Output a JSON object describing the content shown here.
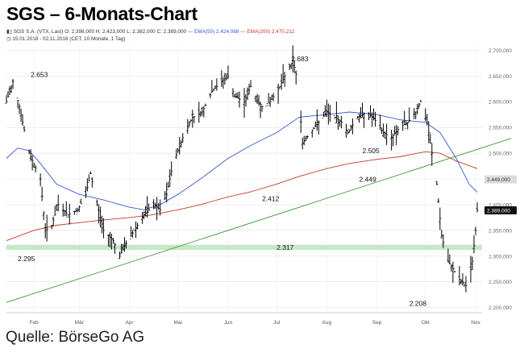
{
  "header": {
    "title": "SGS – 6-Monats-Chart",
    "info_instrument": "SGS S.A. (VTX, Last)",
    "info_ohlc": "O: 2.398,000 H: 2.423,000 L: 2.382,000 C: 2.389,000",
    "info_ema50": "EMA(50) 2.424,088",
    "info_ema200": "EMA(200) 2.470,212",
    "info_range": "15.01.2018 - 02.11.2018 (CET, 10 Monate, 1 Tag)"
  },
  "footer": {
    "source": "Quelle: BörseGo AG"
  },
  "colors": {
    "ema50": "#3a55d4",
    "ema200": "#c43a2e",
    "trendline": "#3a9a3a",
    "support_band": "#bfe5bf",
    "candles": "#000000"
  },
  "chart_data": {
    "type": "line",
    "subtype": "daily-range-bars",
    "ylim": [
      2190,
      2710
    ],
    "y_ticks": [
      "2.200,000",
      "2.250,000",
      "2.300,000",
      "2.350,000",
      "2.400,000",
      "2.450,000",
      "2.500,000",
      "2.550,000",
      "2.600,000",
      "2.650,000",
      "2.700,000"
    ],
    "y_tick_values": [
      2200,
      2250,
      2300,
      2350,
      2400,
      2450,
      2500,
      2550,
      2600,
      2650,
      2700
    ],
    "x_ticks": [
      "Feb",
      "Mär",
      "Apr",
      "Mai",
      "Jun",
      "Jul",
      "Aug",
      "Sep",
      "Okt",
      "Nov"
    ],
    "x_tick_dates": [
      "2018-02-01",
      "2018-03-01",
      "2018-04-01",
      "2018-05-01",
      "2018-06-01",
      "2018-07-01",
      "2018-08-01",
      "2018-09-01",
      "2018-10-01",
      "2018-11-01"
    ],
    "x_range": [
      "2018-01-15",
      "2018-11-05"
    ],
    "price_path": [
      [
        "2018-01-15",
        2600
      ],
      [
        "2018-01-19",
        2640
      ],
      [
        "2018-01-23",
        2590
      ],
      [
        "2018-01-29",
        2500
      ],
      [
        "2018-02-05",
        2450
      ],
      [
        "2018-02-08",
        2350
      ],
      [
        "2018-02-12",
        2360
      ],
      [
        "2018-02-16",
        2400
      ],
      [
        "2018-02-22",
        2380
      ],
      [
        "2018-02-28",
        2390
      ],
      [
        "2018-03-05",
        2420
      ],
      [
        "2018-03-08",
        2460
      ],
      [
        "2018-03-12",
        2400
      ],
      [
        "2018-03-16",
        2350
      ],
      [
        "2018-03-22",
        2330
      ],
      [
        "2018-03-26",
        2300
      ],
      [
        "2018-03-29",
        2320
      ],
      [
        "2018-04-04",
        2350
      ],
      [
        "2018-04-10",
        2380
      ],
      [
        "2018-04-16",
        2400
      ],
      [
        "2018-04-20",
        2390
      ],
      [
        "2018-04-24",
        2420
      ],
      [
        "2018-04-28",
        2480
      ],
      [
        "2018-05-04",
        2530
      ],
      [
        "2018-05-10",
        2570
      ],
      [
        "2018-05-16",
        2580
      ],
      [
        "2018-05-22",
        2620
      ],
      [
        "2018-05-28",
        2640
      ],
      [
        "2018-06-01",
        2650
      ],
      [
        "2018-06-05",
        2610
      ],
      [
        "2018-06-11",
        2600
      ],
      [
        "2018-06-15",
        2630
      ],
      [
        "2018-06-21",
        2590
      ],
      [
        "2018-06-27",
        2600
      ],
      [
        "2018-07-03",
        2630
      ],
      [
        "2018-07-06",
        2650
      ],
      [
        "2018-07-11",
        2680
      ],
      [
        "2018-07-14",
        2640
      ],
      [
        "2018-07-17",
        2520
      ],
      [
        "2018-07-22",
        2540
      ],
      [
        "2018-07-27",
        2560
      ],
      [
        "2018-08-01",
        2580
      ],
      [
        "2018-08-06",
        2570
      ],
      [
        "2018-08-10",
        2560
      ],
      [
        "2018-08-14",
        2540
      ],
      [
        "2018-08-20",
        2570
      ],
      [
        "2018-08-26",
        2580
      ],
      [
        "2018-09-01",
        2560
      ],
      [
        "2018-09-05",
        2540
      ],
      [
        "2018-09-10",
        2530
      ],
      [
        "2018-09-15",
        2550
      ],
      [
        "2018-09-20",
        2560
      ],
      [
        "2018-09-25",
        2580
      ],
      [
        "2018-09-28",
        2600
      ],
      [
        "2018-10-02",
        2560
      ],
      [
        "2018-10-05",
        2500
      ],
      [
        "2018-10-08",
        2440
      ],
      [
        "2018-10-11",
        2340
      ],
      [
        "2018-10-15",
        2290
      ],
      [
        "2018-10-19",
        2270
      ],
      [
        "2018-10-23",
        2250
      ],
      [
        "2018-10-27",
        2240
      ],
      [
        "2018-10-30",
        2290
      ],
      [
        "2018-11-01",
        2350
      ],
      [
        "2018-11-02",
        2389
      ]
    ],
    "lows_anchor": [],
    "ema50": [
      [
        "2018-01-15",
        2490
      ],
      [
        "2018-01-22",
        2510
      ],
      [
        "2018-01-29",
        2505
      ],
      [
        "2018-02-05",
        2480
      ],
      [
        "2018-02-15",
        2440
      ],
      [
        "2018-03-01",
        2420
      ],
      [
        "2018-03-15",
        2410
      ],
      [
        "2018-04-01",
        2395
      ],
      [
        "2018-04-10",
        2390
      ],
      [
        "2018-04-20",
        2400
      ],
      [
        "2018-05-01",
        2420
      ],
      [
        "2018-05-15",
        2450
      ],
      [
        "2018-06-01",
        2490
      ],
      [
        "2018-06-15",
        2515
      ],
      [
        "2018-07-01",
        2540
      ],
      [
        "2018-07-15",
        2570
      ],
      [
        "2018-08-01",
        2575
      ],
      [
        "2018-08-15",
        2580
      ],
      [
        "2018-09-01",
        2575
      ],
      [
        "2018-09-15",
        2565
      ],
      [
        "2018-10-01",
        2560
      ],
      [
        "2018-10-10",
        2540
      ],
      [
        "2018-10-20",
        2490
      ],
      [
        "2018-10-28",
        2440
      ],
      [
        "2018-11-02",
        2424
      ]
    ],
    "ema200": [
      [
        "2018-01-15",
        2330
      ],
      [
        "2018-02-01",
        2350
      ],
      [
        "2018-02-15",
        2360
      ],
      [
        "2018-03-01",
        2365
      ],
      [
        "2018-03-15",
        2370
      ],
      [
        "2018-04-01",
        2375
      ],
      [
        "2018-04-15",
        2380
      ],
      [
        "2018-05-01",
        2390
      ],
      [
        "2018-05-15",
        2400
      ],
      [
        "2018-06-01",
        2415
      ],
      [
        "2018-06-15",
        2425
      ],
      [
        "2018-07-01",
        2440
      ],
      [
        "2018-07-15",
        2455
      ],
      [
        "2018-08-01",
        2470
      ],
      [
        "2018-08-15",
        2480
      ],
      [
        "2018-09-01",
        2488
      ],
      [
        "2018-09-15",
        2493
      ],
      [
        "2018-10-01",
        2503
      ],
      [
        "2018-10-10",
        2500
      ],
      [
        "2018-10-20",
        2485
      ],
      [
        "2018-11-02",
        2470
      ]
    ],
    "trendline": [
      [
        "2018-01-15",
        2210
      ],
      [
        "2018-11-05",
        2510
      ]
    ],
    "support_band": [
      2312,
      2322
    ],
    "price_box": {
      "value": 2389,
      "label": "2.389,000"
    },
    "level_box": {
      "value": 2449,
      "label": "2.449,000"
    },
    "annotations": [
      {
        "label": "2.653",
        "x": "2018-01-30",
        "y": 2653
      },
      {
        "label": "2.683",
        "x": "2018-07-10",
        "y": 2683
      },
      {
        "label": "2.505",
        "x": "2018-08-23",
        "y": 2505
      },
      {
        "label": "2.449",
        "x": "2018-08-21",
        "y": 2449
      },
      {
        "label": "2.412",
        "x": "2018-06-22",
        "y": 2412
      },
      {
        "label": "2.317",
        "x": "2018-07-01",
        "y": 2317
      },
      {
        "label": "2.295",
        "x": "2018-01-22",
        "y": 2295
      },
      {
        "label": "2.208",
        "x": "2018-09-21",
        "y": 2208
      }
    ]
  }
}
